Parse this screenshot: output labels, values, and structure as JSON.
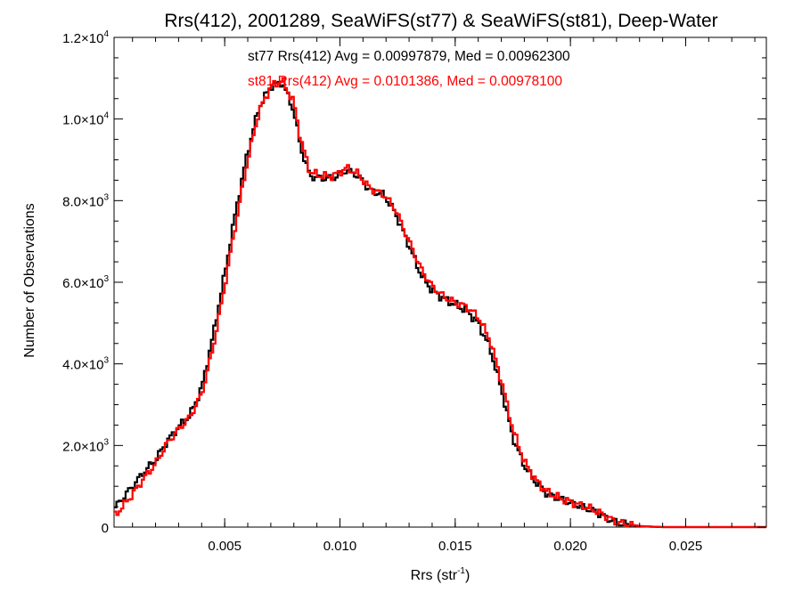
{
  "chart_data": {
    "type": "histogram-step",
    "title": "Rrs(412), 2001289, SeaWiFS(st77) & SeaWiFS(st81), Deep-Water",
    "xlabel": {
      "base": "Rrs (str",
      "sup": "-1",
      "tail": ")"
    },
    "ylabel": "Number of Observations",
    "xlim": [
      0.0002,
      0.0285
    ],
    "ylim": [
      0,
      12000
    ],
    "grid": false,
    "xticks": [
      {
        "value": 0.005,
        "label": "0.005"
      },
      {
        "value": 0.01,
        "label": "0.010"
      },
      {
        "value": 0.015,
        "label": "0.015"
      },
      {
        "value": 0.02,
        "label": "0.020"
      },
      {
        "value": 0.025,
        "label": "0.025"
      }
    ],
    "yticks": [
      {
        "value": 0,
        "label": "0",
        "sup": ""
      },
      {
        "value": 2000,
        "label": "2.0×10",
        "sup": "3"
      },
      {
        "value": 4000,
        "label": "4.0×10",
        "sup": "3"
      },
      {
        "value": 6000,
        "label": "6.0×10",
        "sup": "3"
      },
      {
        "value": 8000,
        "label": "8.0×10",
        "sup": "3"
      },
      {
        "value": 10000,
        "label": "1.0×10",
        "sup": "4"
      },
      {
        "value": 12000,
        "label": "1.2×10",
        "sup": "4"
      }
    ],
    "bin_width": 0.0001,
    "annotations": [
      {
        "text": "st77 Rrs(412) Avg = 0.00997879, Med = 0.00962300",
        "color": "#000000"
      },
      {
        "text": "st81 Rrs(412) Avg = 0.0101386, Med = 0.00978100",
        "color": "#ff0000"
      }
    ],
    "series": [
      {
        "name": "st77",
        "color": "#000000",
        "knots": [
          [
            0.0002,
            450
          ],
          [
            0.001,
            1000
          ],
          [
            0.0015,
            1350
          ],
          [
            0.002,
            1650
          ],
          [
            0.0025,
            2100
          ],
          [
            0.003,
            2450
          ],
          [
            0.0035,
            2750
          ],
          [
            0.004,
            3400
          ],
          [
            0.0045,
            4700
          ],
          [
            0.005,
            6200
          ],
          [
            0.0055,
            7800
          ],
          [
            0.006,
            9200
          ],
          [
            0.0065,
            10300
          ],
          [
            0.007,
            10800
          ],
          [
            0.0075,
            10900
          ],
          [
            0.008,
            10200
          ],
          [
            0.0083,
            9300
          ],
          [
            0.0087,
            8600
          ],
          [
            0.0092,
            8550
          ],
          [
            0.0097,
            8550
          ],
          [
            0.0103,
            8750
          ],
          [
            0.0108,
            8600
          ],
          [
            0.0113,
            8250
          ],
          [
            0.0119,
            8150
          ],
          [
            0.0124,
            7700
          ],
          [
            0.013,
            6900
          ],
          [
            0.0135,
            6200
          ],
          [
            0.014,
            5800
          ],
          [
            0.0145,
            5600
          ],
          [
            0.015,
            5450
          ],
          [
            0.0155,
            5300
          ],
          [
            0.016,
            5000
          ],
          [
            0.0165,
            4400
          ],
          [
            0.017,
            3400
          ],
          [
            0.0175,
            2200
          ],
          [
            0.018,
            1500
          ],
          [
            0.0185,
            1100
          ],
          [
            0.019,
            800
          ],
          [
            0.0195,
            700
          ],
          [
            0.02,
            600
          ],
          [
            0.0205,
            500
          ],
          [
            0.021,
            400
          ],
          [
            0.0215,
            250
          ],
          [
            0.022,
            100
          ],
          [
            0.023,
            20
          ],
          [
            0.024,
            0
          ],
          [
            0.0285,
            0
          ]
        ]
      },
      {
        "name": "st81",
        "color": "#ff0000",
        "knots": [
          [
            0.0002,
            250
          ],
          [
            0.001,
            800
          ],
          [
            0.0015,
            1200
          ],
          [
            0.002,
            1550
          ],
          [
            0.0025,
            2050
          ],
          [
            0.003,
            2400
          ],
          [
            0.0035,
            2700
          ],
          [
            0.004,
            3250
          ],
          [
            0.0045,
            4400
          ],
          [
            0.005,
            5900
          ],
          [
            0.0055,
            7500
          ],
          [
            0.006,
            9000
          ],
          [
            0.0065,
            10200
          ],
          [
            0.007,
            10800
          ],
          [
            0.0075,
            10950
          ],
          [
            0.008,
            10400
          ],
          [
            0.0083,
            9500
          ],
          [
            0.0087,
            8700
          ],
          [
            0.0092,
            8600
          ],
          [
            0.0097,
            8600
          ],
          [
            0.0103,
            8800
          ],
          [
            0.0108,
            8650
          ],
          [
            0.0113,
            8300
          ],
          [
            0.0119,
            8150
          ],
          [
            0.0124,
            7800
          ],
          [
            0.013,
            7000
          ],
          [
            0.0135,
            6350
          ],
          [
            0.014,
            5900
          ],
          [
            0.0145,
            5650
          ],
          [
            0.015,
            5500
          ],
          [
            0.0155,
            5400
          ],
          [
            0.016,
            5150
          ],
          [
            0.0165,
            4600
          ],
          [
            0.017,
            3600
          ],
          [
            0.0175,
            2400
          ],
          [
            0.018,
            1600
          ],
          [
            0.0185,
            1150
          ],
          [
            0.019,
            850
          ],
          [
            0.0195,
            720
          ],
          [
            0.02,
            620
          ],
          [
            0.0205,
            520
          ],
          [
            0.021,
            430
          ],
          [
            0.0215,
            280
          ],
          [
            0.022,
            120
          ],
          [
            0.023,
            25
          ],
          [
            0.024,
            0
          ],
          [
            0.0285,
            0
          ]
        ]
      }
    ]
  }
}
